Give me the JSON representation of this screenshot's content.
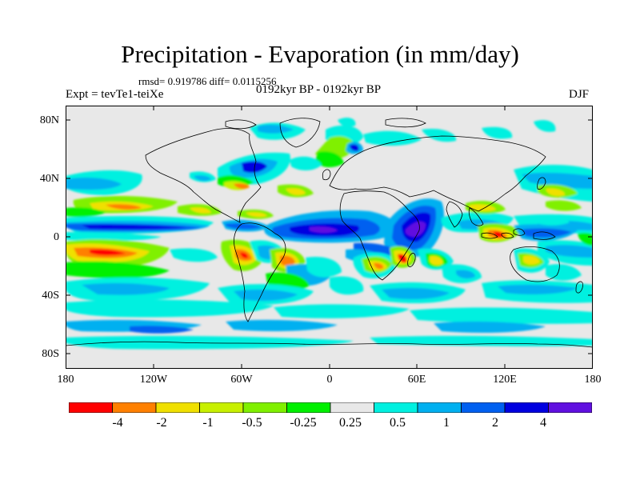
{
  "title": "Precipitation - Evaporation (in mm/day)",
  "stats": "rmsd= 0.919786 diff= 0.0115256",
  "experiment": "Expt = tevTe1-teiXe",
  "period": "0192kyr BP - 0192kyr BP",
  "season": "DJF",
  "y_ticks": [
    "80N",
    "40N",
    "0",
    "40S",
    "80S"
  ],
  "x_ticks": [
    "180",
    "120W",
    "60W",
    "0",
    "60E",
    "120E",
    "180"
  ],
  "colorbar": {
    "labels": [
      "-4",
      "-2",
      "-1",
      "-0.5",
      "-0.25",
      "0.25",
      "0.5",
      "1",
      "2",
      "4"
    ],
    "colors": [
      "#ff0000",
      "#ff8000",
      "#f0e000",
      "#c8f000",
      "#80f000",
      "#00f000",
      "#e8e8e8",
      "#00f0e0",
      "#00b0f0",
      "#0060f0",
      "#0000e0",
      "#6010e0"
    ]
  },
  "map": {
    "lon_range": [
      -180,
      180
    ],
    "lat_range": [
      -90,
      90
    ],
    "background_color": "#e8e8e8",
    "coastline_color": "#000000"
  }
}
